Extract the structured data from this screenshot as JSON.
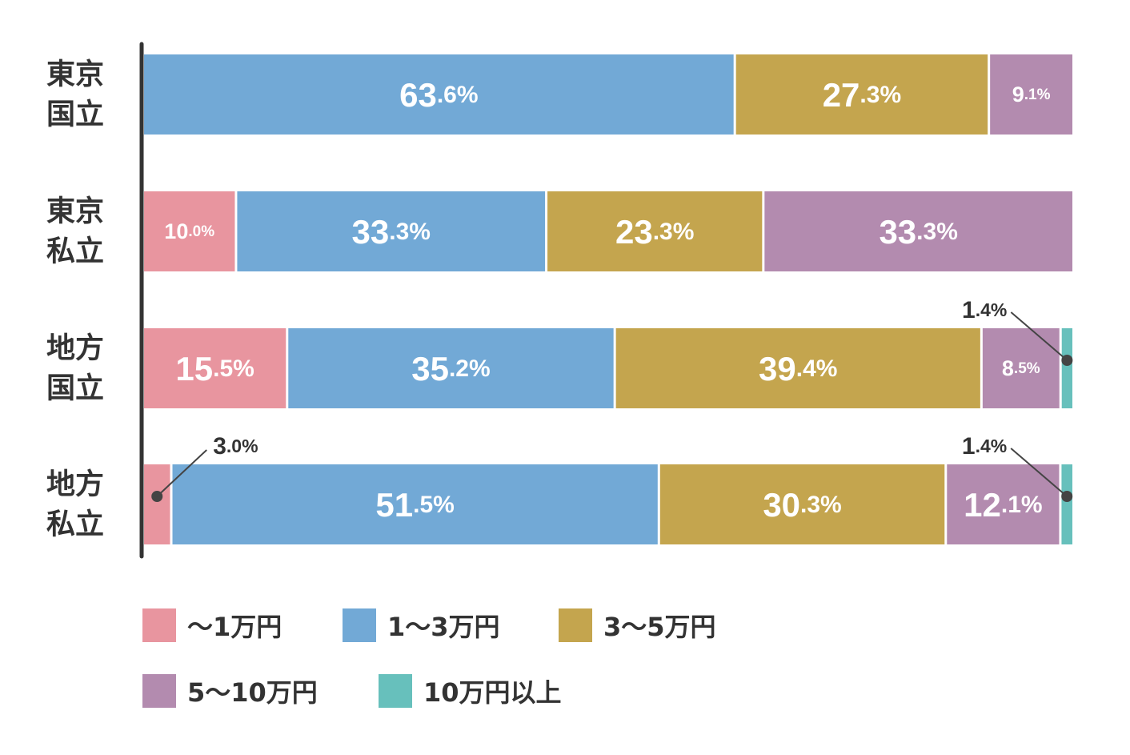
{
  "chart_data": {
    "type": "bar",
    "orientation": "horizontal",
    "stacked": true,
    "percent": true,
    "categories": [
      {
        "line1": "東京",
        "line2": "国立"
      },
      {
        "line1": "東京",
        "line2": "私立"
      },
      {
        "line1": "地方",
        "line2": "国立"
      },
      {
        "line1": "地方",
        "line2": "私立"
      }
    ],
    "series": [
      {
        "name": "～1万円",
        "color": "#E8959F",
        "values": [
          0,
          10.0,
          15.5,
          3.0
        ]
      },
      {
        "name": "1～3万円",
        "color": "#72A9D6",
        "values": [
          63.6,
          33.3,
          35.2,
          51.5
        ]
      },
      {
        "name": "3～5万円",
        "color": "#C4A54E",
        "values": [
          27.3,
          23.3,
          39.4,
          30.3
        ]
      },
      {
        "name": "5～10万円",
        "color": "#B38BAF",
        "values": [
          9.1,
          33.3,
          8.5,
          12.1
        ]
      },
      {
        "name": "10万円以上",
        "color": "#67C0BC",
        "values": [
          0,
          0,
          1.4,
          1.4
        ]
      }
    ],
    "data_labels": [
      [
        null,
        "63.6%",
        "27.3%",
        "9.1%",
        null
      ],
      [
        "10.0%",
        "33.3%",
        "23.3%",
        "33.3%",
        null
      ],
      [
        "15.5%",
        "35.2%",
        "39.4%",
        "8.5%",
        "1.4%"
      ],
      [
        "3.0%",
        "51.5%",
        "30.3%",
        "12.1%",
        "1.4%"
      ]
    ],
    "outside_labels": [
      "3.0%",
      "1.4%"
    ],
    "legend_position": "bottom",
    "grid": false
  }
}
